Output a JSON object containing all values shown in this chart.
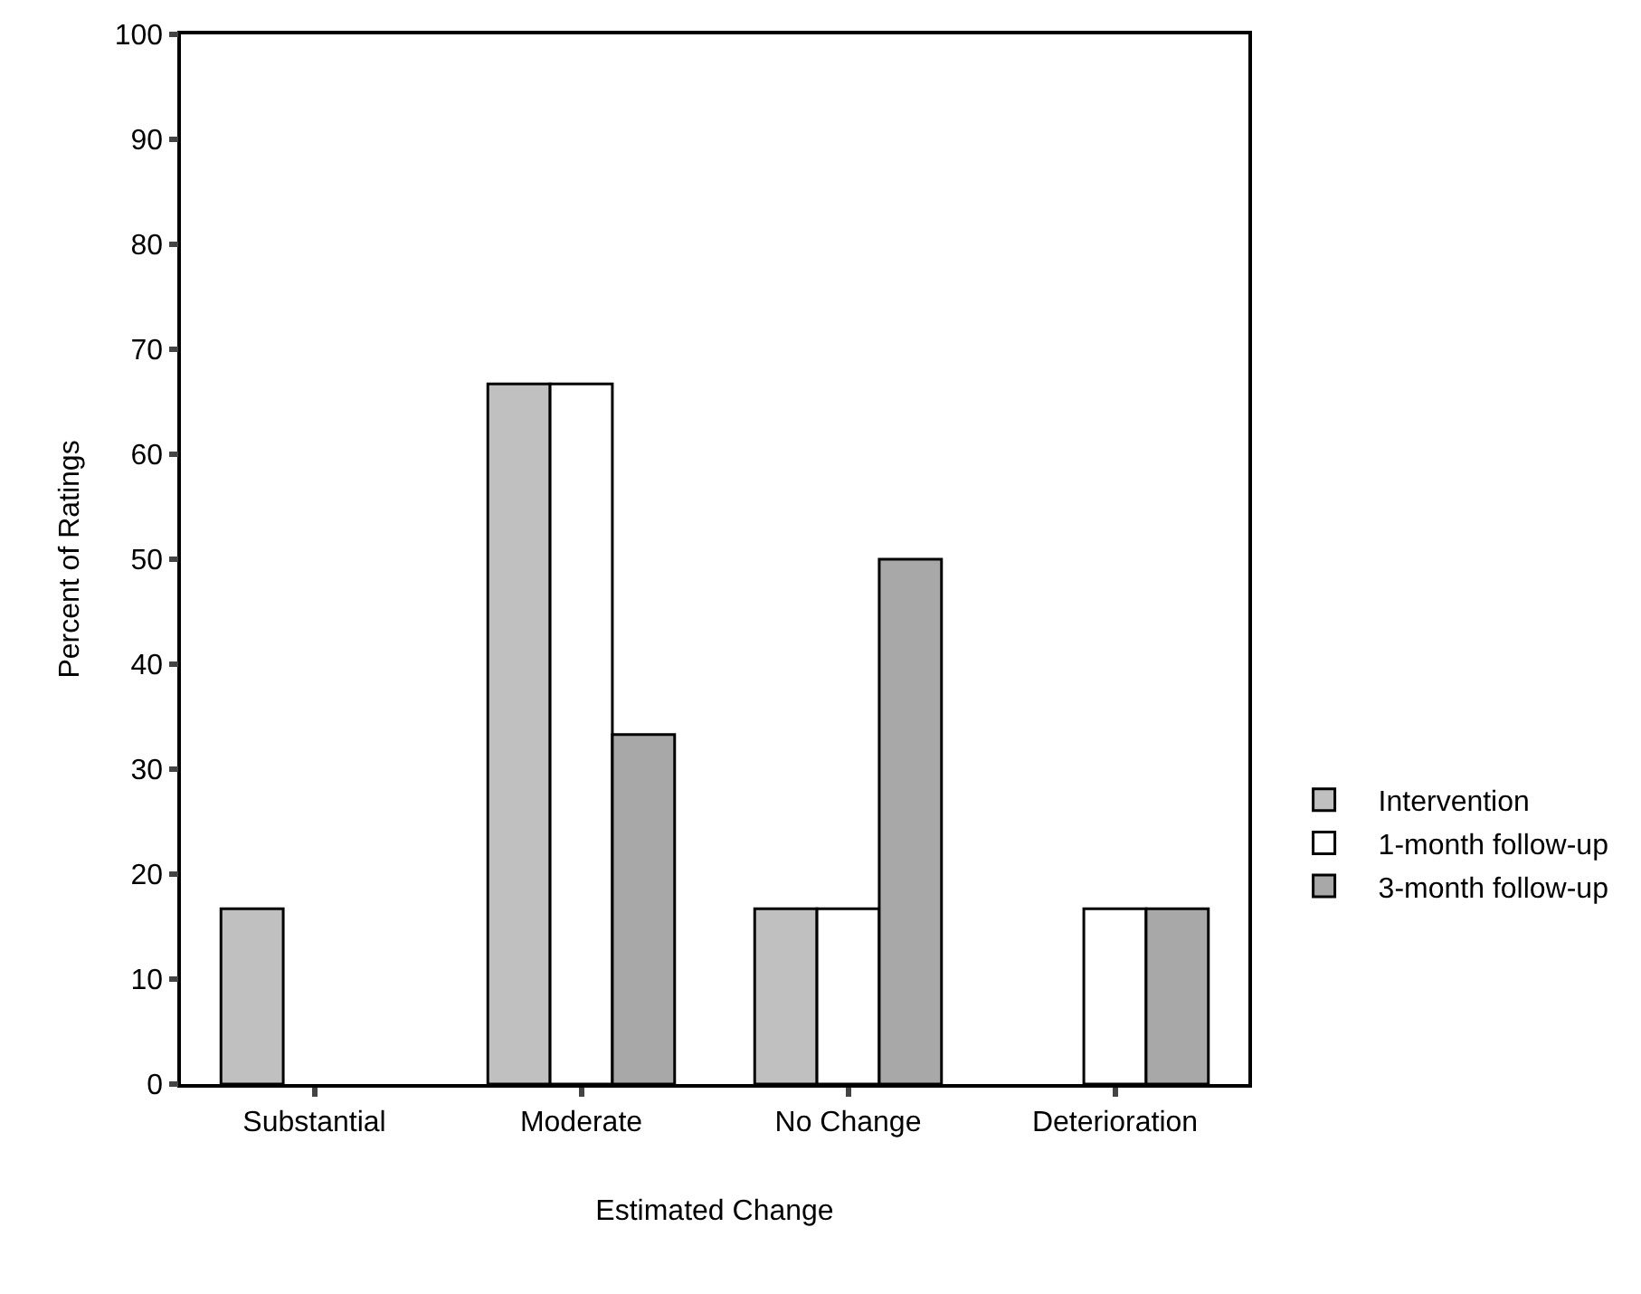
{
  "chart_data": {
    "type": "bar",
    "xlabel": "Estimated Change",
    "ylabel": "Percent of Ratings",
    "categories": [
      "Substantial",
      "Moderate",
      "No Change",
      "Deterioration"
    ],
    "series": [
      {
        "name": "Intervention",
        "color": "#c0c0c0",
        "values": [
          16.7,
          66.7,
          16.7,
          0
        ]
      },
      {
        "name": "1-month follow-up",
        "color": "#ffffff",
        "values": [
          0,
          66.7,
          16.7,
          16.7
        ]
      },
      {
        "name": "3-month follow-up",
        "color": "#a8a8a8",
        "values": [
          0,
          33.3,
          50,
          16.7
        ]
      }
    ],
    "ylim": [
      0,
      100
    ],
    "yticks": [
      0,
      10,
      20,
      30,
      40,
      50,
      60,
      70,
      80,
      90,
      100
    ],
    "legend": "bottom right"
  }
}
